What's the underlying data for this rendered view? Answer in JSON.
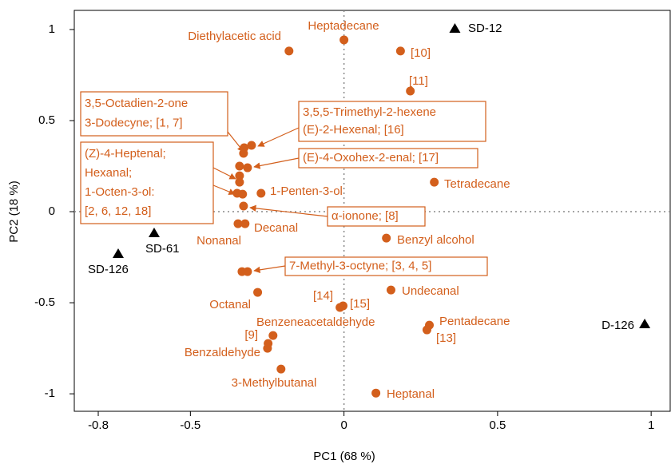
{
  "chart_data": {
    "type": "scatter",
    "xlabel": "PC1 (68 %)",
    "ylabel": "PC2 (18 %)",
    "xlim": [
      -0.878,
      1.062
    ],
    "ylim": [
      -1.096,
      1.105
    ],
    "xticks": [
      -0.8,
      -0.5,
      0,
      0.5,
      1
    ],
    "yticks": [
      -1,
      -0.5,
      0,
      0.5,
      1
    ],
    "series": [
      {
        "color": "#d35f1c",
        "marker": "circle",
        "x": [
          -0.179,
          0,
          0.184,
          0.216,
          -0.301,
          -0.325,
          -0.327,
          -0.34,
          -0.314,
          -0.34,
          -0.34,
          -0.348,
          -0.33,
          -0.327,
          -0.27,
          -0.345,
          -0.322,
          -0.332,
          -0.314,
          -0.281,
          0.294,
          0.138,
          0.153,
          -0.013,
          -0.003,
          0.278,
          0.27,
          -0.231,
          -0.247,
          -0.249,
          -0.205,
          0.104
        ],
        "values": [
          0.882,
          0.943,
          0.882,
          0.662,
          0.364,
          0.351,
          0.32,
          0.25,
          0.241,
          0.197,
          0.162,
          0.101,
          0.096,
          0.031,
          0.101,
          -0.066,
          -0.066,
          -0.329,
          -0.329,
          -0.443,
          0.162,
          -0.145,
          -0.43,
          -0.526,
          -0.517,
          -0.623,
          -0.649,
          -0.68,
          -0.724,
          -0.75,
          -0.864,
          -0.996
        ],
        "labels": [
          "Diethylacetic acid",
          "Heptadecane",
          "[10]",
          "[11]",
          null,
          null,
          null,
          null,
          null,
          null,
          null,
          null,
          null,
          null,
          "1-Penten-3-ol",
          "Nonanal",
          "Decanal",
          null,
          null,
          "Octanal",
          "Tetradecane",
          "Benzyl alcohol",
          "Undecanal",
          "[14]",
          "[15]",
          "Pentadecane",
          "[13]",
          "Benzeneacetaldehyde",
          "[9]",
          "Benzaldehyde",
          "3-Methylbutanal",
          "Heptanal"
        ]
      },
      {
        "color": "#000000",
        "marker": "triangle",
        "x": [
          0.361,
          -0.618,
          -0.735,
          0.979
        ],
        "values": [
          1.004,
          -0.118,
          -0.232,
          -0.618
        ],
        "labels": [
          "SD-12",
          "SD-61",
          "SD-126",
          "D-126"
        ]
      }
    ],
    "annotations": [
      {
        "lines": [
          "3,5-Octadien-2-one",
          "3-Dodecyne; [1, 7]"
        ]
      },
      {
        "lines": [
          "3,5,5-Trimethyl-2-hexene",
          "(E)-2-Hexenal; [16]"
        ]
      },
      {
        "lines": [
          "(E)-4-Oxohex-2-enal; [17]"
        ]
      },
      {
        "lines": [
          "(Z)-4-Heptenal;",
          "Hexanal;",
          "1-Octen-3-ol:",
          "[2, 6, 12, 18]"
        ]
      },
      {
        "lines": [
          "α-ionone; [8]"
        ]
      },
      {
        "lines": [
          "7-Methyl-3-octyne; [3, 4, 5]"
        ]
      }
    ]
  }
}
